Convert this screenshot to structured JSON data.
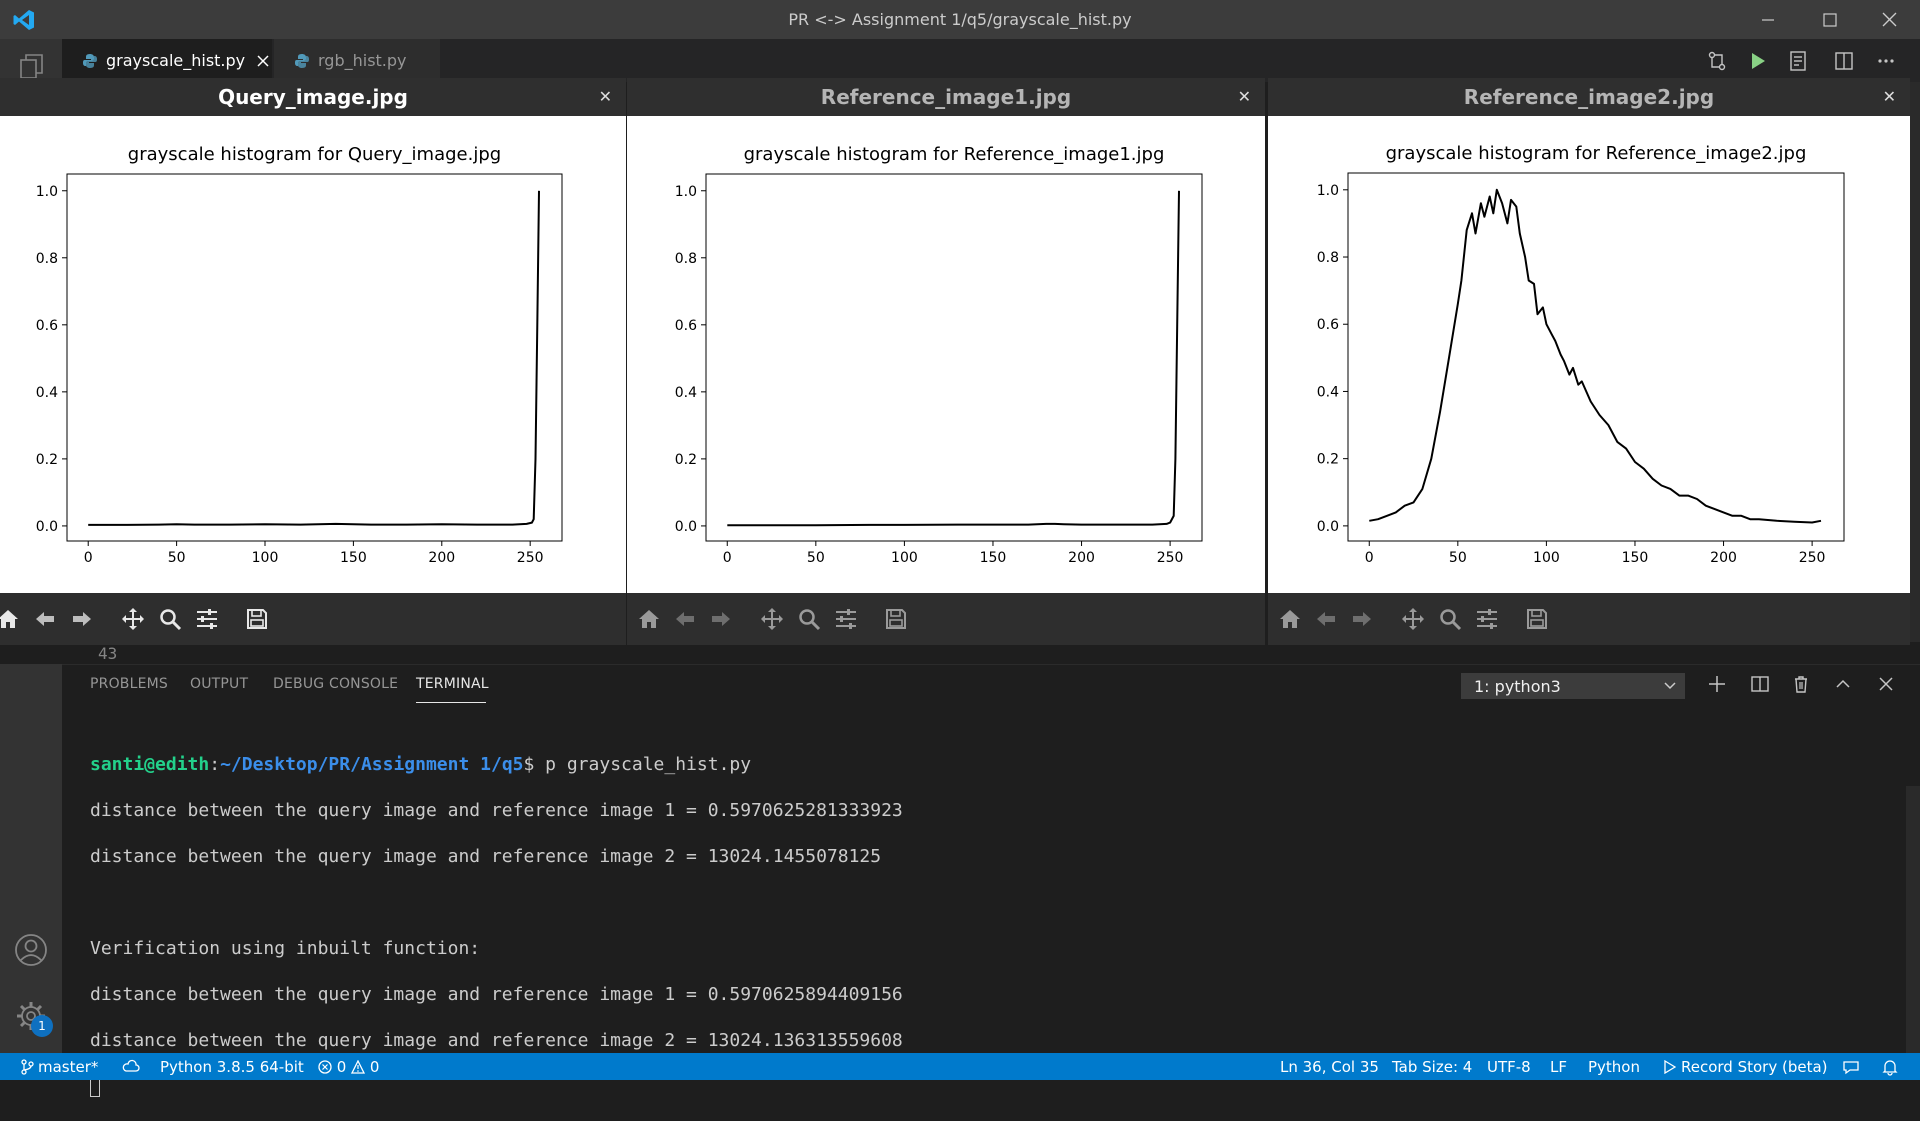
{
  "window": {
    "title": "PR <-> Assignment 1/q5/grayscale_hist.py"
  },
  "tabs": [
    {
      "label": "grayscale_hist.py",
      "active": true
    },
    {
      "label": "rgb_hist.py",
      "active": false
    }
  ],
  "editor": {
    "visible_line_number": "43"
  },
  "figures": [
    {
      "window_title": "Query_image.jpg",
      "title_active": true
    },
    {
      "window_title": "Reference_image1.jpg",
      "title_active": false
    },
    {
      "window_title": "Reference_image2.jpg",
      "title_active": false
    }
  ],
  "chart_data": [
    {
      "type": "line",
      "title": "grayscale histogram for Query_image.jpg",
      "xlabel": "",
      "ylabel": "",
      "xlim": [
        -12,
        268
      ],
      "ylim": [
        -0.045,
        1.05
      ],
      "xticks": [
        0,
        50,
        100,
        150,
        200,
        250
      ],
      "yticks": [
        0.0,
        0.2,
        0.4,
        0.6,
        0.8,
        1.0
      ],
      "series": [
        {
          "x": [
            0,
            20,
            40,
            50,
            60,
            80,
            100,
            120,
            140,
            150,
            160,
            180,
            200,
            220,
            240,
            248,
            251,
            252,
            253,
            254,
            255
          ],
          "y": [
            0.003,
            0.003,
            0.004,
            0.005,
            0.004,
            0.004,
            0.005,
            0.004,
            0.006,
            0.005,
            0.004,
            0.004,
            0.005,
            0.004,
            0.004,
            0.006,
            0.01,
            0.02,
            0.2,
            0.6,
            1.0
          ]
        }
      ]
    },
    {
      "type": "line",
      "title": "grayscale histogram for Reference_image1.jpg",
      "xlabel": "",
      "ylabel": "",
      "xlim": [
        -12,
        268
      ],
      "ylim": [
        -0.045,
        1.05
      ],
      "xticks": [
        0,
        50,
        100,
        150,
        200,
        250
      ],
      "yticks": [
        0.0,
        0.2,
        0.4,
        0.6,
        0.8,
        1.0
      ],
      "series": [
        {
          "x": [
            0,
            20,
            50,
            80,
            100,
            130,
            150,
            170,
            180,
            185,
            190,
            200,
            220,
            240,
            248,
            250,
            252,
            253,
            254,
            255
          ],
          "y": [
            0.002,
            0.002,
            0.002,
            0.003,
            0.003,
            0.004,
            0.004,
            0.004,
            0.006,
            0.006,
            0.005,
            0.004,
            0.004,
            0.004,
            0.006,
            0.01,
            0.03,
            0.2,
            0.6,
            1.0
          ]
        }
      ]
    },
    {
      "type": "line",
      "title": "grayscale histogram for Reference_image2.jpg",
      "xlabel": "",
      "ylabel": "",
      "xlim": [
        -12,
        268
      ],
      "ylim": [
        -0.045,
        1.05
      ],
      "xticks": [
        0,
        50,
        100,
        150,
        200,
        250
      ],
      "yticks": [
        0.0,
        0.2,
        0.4,
        0.6,
        0.8,
        1.0
      ],
      "series": [
        {
          "x": [
            0,
            5,
            10,
            15,
            20,
            25,
            30,
            35,
            40,
            45,
            50,
            52,
            55,
            58,
            60,
            63,
            65,
            68,
            70,
            72,
            75,
            78,
            80,
            83,
            85,
            88,
            90,
            93,
            95,
            98,
            100,
            103,
            105,
            108,
            110,
            113,
            115,
            118,
            120,
            125,
            130,
            135,
            140,
            145,
            150,
            155,
            160,
            165,
            170,
            175,
            180,
            185,
            190,
            195,
            200,
            205,
            210,
            215,
            220,
            230,
            240,
            250,
            255
          ],
          "y": [
            0.015,
            0.02,
            0.03,
            0.04,
            0.06,
            0.07,
            0.11,
            0.2,
            0.34,
            0.5,
            0.66,
            0.73,
            0.88,
            0.93,
            0.87,
            0.96,
            0.92,
            0.98,
            0.93,
            1.0,
            0.96,
            0.9,
            0.97,
            0.95,
            0.87,
            0.8,
            0.73,
            0.72,
            0.63,
            0.65,
            0.6,
            0.57,
            0.55,
            0.51,
            0.49,
            0.45,
            0.47,
            0.42,
            0.43,
            0.37,
            0.33,
            0.3,
            0.25,
            0.23,
            0.19,
            0.17,
            0.14,
            0.12,
            0.11,
            0.09,
            0.09,
            0.08,
            0.06,
            0.05,
            0.04,
            0.03,
            0.03,
            0.02,
            0.02,
            0.015,
            0.012,
            0.01,
            0.015
          ]
        }
      ]
    }
  ],
  "panel": {
    "tabs": [
      "PROBLEMS",
      "OUTPUT",
      "DEBUG CONSOLE",
      "TERMINAL"
    ],
    "active_tab": "TERMINAL",
    "terminal_select": "1: python3"
  },
  "terminal": {
    "prompt_user": "santi@edith",
    "prompt_sep": ":",
    "prompt_path": "~/Desktop/PR/Assignment 1/q5",
    "prompt_cmd": "$ p grayscale_hist.py",
    "out1": "distance between the query image and reference image 1 = 0.5970625281333923",
    "out2": "distance between the query image and reference image 2 = 13024.1455078125",
    "out3": "Verification using inbuilt function:",
    "out4": "distance between the query image and reference image 1 = 0.5970625894409156",
    "out5": "distance between the query image and reference image 2 = 13024.136313559608"
  },
  "statusbar": {
    "branch": "master*",
    "python": "Python 3.8.5 64-bit",
    "errors": "0",
    "warnings": "0",
    "position": "Ln 36, Col 35",
    "tabsize": "Tab Size: 4",
    "encoding": "UTF-8",
    "eol": "LF",
    "language": "Python",
    "record": "Record Story (beta)"
  },
  "badges": {
    "settings_count": "1"
  },
  "colors": {
    "statusbar": "#007acc",
    "prompt_user": "#23d18b",
    "prompt_path": "#3b8eea"
  }
}
